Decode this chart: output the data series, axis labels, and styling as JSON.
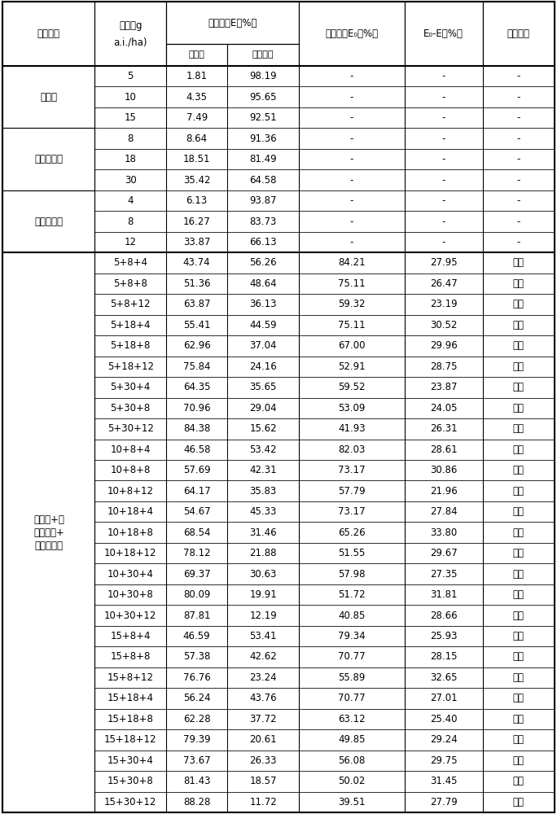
{
  "rows": [
    [
      "嗪草醚",
      "5",
      "1.81",
      "98.19",
      "-",
      "-",
      "-"
    ],
    [
      "",
      "10",
      "4.35",
      "95.65",
      "-",
      "-",
      "-"
    ],
    [
      "",
      "15",
      "7.49",
      "92.51",
      "-",
      "-",
      "-"
    ],
    [
      "丙嗪嘧磺隆",
      "8",
      "8.64",
      "91.36",
      "-",
      "-",
      "-"
    ],
    [
      "",
      "18",
      "18.51",
      "81.49",
      "-",
      "-",
      "-"
    ],
    [
      "",
      "30",
      "35.42",
      "64.58",
      "-",
      "-",
      "-"
    ],
    [
      "氟酮磺草胺",
      "4",
      "6.13",
      "93.87",
      "-",
      "-",
      "-"
    ],
    [
      "",
      "8",
      "16.27",
      "83.73",
      "-",
      "-",
      "-"
    ],
    [
      "",
      "12",
      "33.87",
      "66.13",
      "-",
      "-",
      "-"
    ],
    [
      "嗪草醚+丙\n嗪嘧磺隆+\n氟酮磺草胺",
      "5+8+4",
      "43.74",
      "56.26",
      "84.21",
      "27.95",
      "增效"
    ],
    [
      "",
      "5+8+8",
      "51.36",
      "48.64",
      "75.11",
      "26.47",
      "增效"
    ],
    [
      "",
      "5+8+12",
      "63.87",
      "36.13",
      "59.32",
      "23.19",
      "增效"
    ],
    [
      "",
      "5+18+4",
      "55.41",
      "44.59",
      "75.11",
      "30.52",
      "增效"
    ],
    [
      "",
      "5+18+8",
      "62.96",
      "37.04",
      "67.00",
      "29.96",
      "增效"
    ],
    [
      "",
      "5+18+12",
      "75.84",
      "24.16",
      "52.91",
      "28.75",
      "增效"
    ],
    [
      "",
      "5+30+4",
      "64.35",
      "35.65",
      "59.52",
      "23.87",
      "增效"
    ],
    [
      "",
      "5+30+8",
      "70.96",
      "29.04",
      "53.09",
      "24.05",
      "增效"
    ],
    [
      "",
      "5+30+12",
      "84.38",
      "15.62",
      "41.93",
      "26.31",
      "增效"
    ],
    [
      "",
      "10+8+4",
      "46.58",
      "53.42",
      "82.03",
      "28.61",
      "增效"
    ],
    [
      "",
      "10+8+8",
      "57.69",
      "42.31",
      "73.17",
      "30.86",
      "增效"
    ],
    [
      "",
      "10+8+12",
      "64.17",
      "35.83",
      "57.79",
      "21.96",
      "增效"
    ],
    [
      "",
      "10+18+4",
      "54.67",
      "45.33",
      "73.17",
      "27.84",
      "增效"
    ],
    [
      "",
      "10+18+8",
      "68.54",
      "31.46",
      "65.26",
      "33.80",
      "增效"
    ],
    [
      "",
      "10+18+12",
      "78.12",
      "21.88",
      "51.55",
      "29.67",
      "增效"
    ],
    [
      "",
      "10+30+4",
      "69.37",
      "30.63",
      "57.98",
      "27.35",
      "增效"
    ],
    [
      "",
      "10+30+8",
      "80.09",
      "19.91",
      "51.72",
      "31.81",
      "增效"
    ],
    [
      "",
      "10+30+12",
      "87.81",
      "12.19",
      "40.85",
      "28.66",
      "增效"
    ],
    [
      "",
      "15+8+4",
      "46.59",
      "53.41",
      "79.34",
      "25.93",
      "增效"
    ],
    [
      "",
      "15+8+8",
      "57.38",
      "42.62",
      "70.77",
      "28.15",
      "增效"
    ],
    [
      "",
      "15+8+12",
      "76.76",
      "23.24",
      "55.89",
      "32.65",
      "增效"
    ],
    [
      "",
      "15+18+4",
      "56.24",
      "43.76",
      "70.77",
      "27.01",
      "增效"
    ],
    [
      "",
      "15+18+8",
      "62.28",
      "37.72",
      "63.12",
      "25.40",
      "增效"
    ],
    [
      "",
      "15+18+12",
      "79.39",
      "20.61",
      "49.85",
      "29.24",
      "增效"
    ],
    [
      "",
      "15+30+4",
      "73.67",
      "26.33",
      "56.08",
      "29.75",
      "增效"
    ],
    [
      "",
      "15+30+8",
      "81.43",
      "18.57",
      "50.02",
      "31.45",
      "增效"
    ],
    [
      "",
      "15+30+12",
      "88.28",
      "11.72",
      "39.51",
      "27.79",
      "增效"
    ]
  ],
  "group_spans": [
    {
      "label": "嗪草醚",
      "start": 0,
      "end": 2
    },
    {
      "label": "丙嗪嘧磺隆",
      "start": 3,
      "end": 5
    },
    {
      "label": "氟酮磺草胺",
      "start": 6,
      "end": 8
    },
    {
      "label": "嗪草醚+丙\n嗪嘧磺隆+\n氟酮磺草胺",
      "start": 9,
      "end": 35
    }
  ],
  "col_ratios": [
    0.135,
    0.105,
    0.09,
    0.105,
    0.155,
    0.115,
    0.105
  ],
  "figsize": [
    6.84,
    10.0
  ],
  "dpi": 100,
  "bg_color": "#ffffff",
  "line_color": "#000000",
  "header_bg": "#ffffff",
  "font_size": 8.5,
  "header_font_size": 8.5
}
